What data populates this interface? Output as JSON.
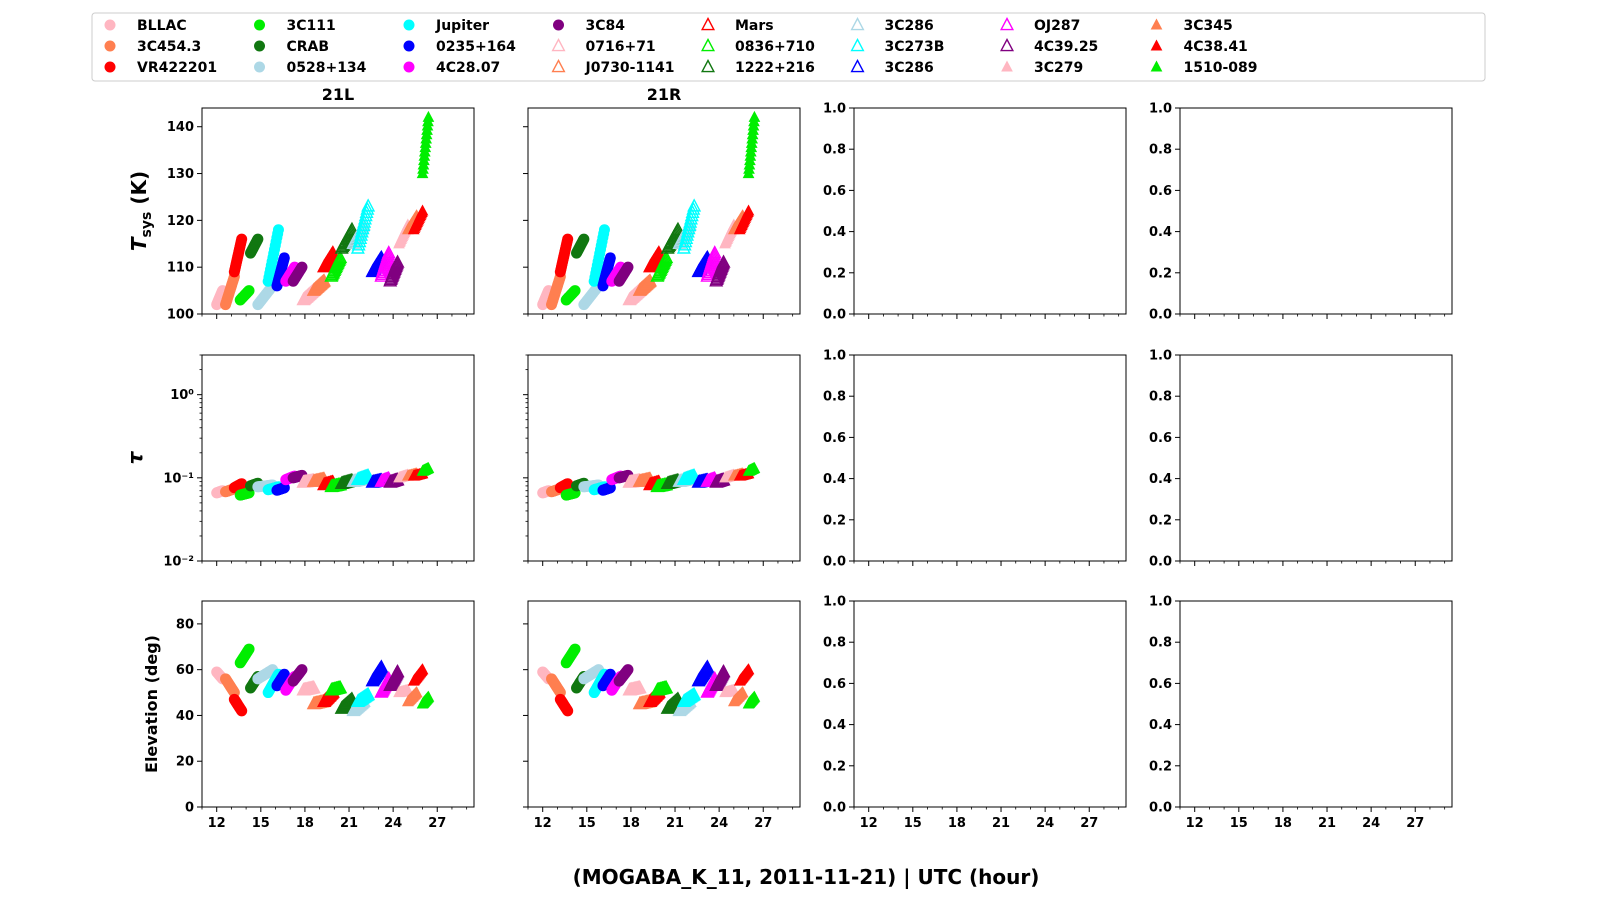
{
  "chart_data": {
    "type": "scatter",
    "xlabel": "(MOGABA_K_11, 2011-11-21) | UTC (hour)",
    "xlim": [
      11,
      29.5
    ],
    "xticks": [
      12,
      15,
      18,
      21,
      24,
      27
    ],
    "columns": [
      {
        "title": "21L",
        "has_data": true
      },
      {
        "title": "21R",
        "has_data": true
      },
      {
        "title": "",
        "has_data": false
      },
      {
        "title": "",
        "has_data": false
      }
    ],
    "rows": [
      {
        "key": "tsys",
        "ylabel": "Tsys (K)",
        "ylabel_main": "T",
        "ylabel_sub": "sys",
        "ylabel_rest": " (K)",
        "scale": "linear",
        "ylim": [
          100,
          144
        ],
        "yticks": [
          100,
          110,
          120,
          130,
          140
        ],
        "ytick_labels": [
          "100",
          "110",
          "120",
          "130",
          "140"
        ]
      },
      {
        "key": "tau",
        "ylabel": "τ",
        "scale": "log",
        "ylim": [
          0.01,
          3
        ],
        "yticks": [
          0.01,
          0.1,
          1
        ],
        "ytick_labels": [
          "10⁻²",
          "10⁻¹",
          "10⁰"
        ]
      },
      {
        "key": "elev",
        "ylabel": "Elevation (deg)",
        "scale": "linear",
        "ylim": [
          0,
          90
        ],
        "yticks": [
          0,
          20,
          40,
          60,
          80
        ],
        "ytick_labels": [
          "0",
          "20",
          "40",
          "60",
          "80"
        ]
      }
    ],
    "empty_axis": {
      "ylim": [
        0,
        1
      ],
      "yticks": [
        0,
        0.2,
        0.4,
        0.6,
        0.8,
        1.0
      ],
      "ytick_labels": [
        "0.0",
        "0.2",
        "0.4",
        "0.6",
        "0.8",
        "1.0"
      ]
    },
    "legend_placement": "top",
    "series": [
      {
        "name": "BLLAC",
        "color": "#ffb6c1",
        "marker": "circle",
        "t0": 12.0,
        "t1": 12.4,
        "tsys": [
          102,
          105
        ],
        "tau": [
          0.066,
          0.07
        ],
        "elev": [
          59,
          56
        ]
      },
      {
        "name": "3C454.3",
        "color": "#ff7f50",
        "marker": "circle",
        "t0": 12.6,
        "t1": 13.2,
        "tsys": [
          102,
          108
        ],
        "tau": [
          0.068,
          0.074
        ],
        "elev": [
          56,
          50
        ]
      },
      {
        "name": "VR422201",
        "color": "#ff0000",
        "marker": "circle",
        "t0": 13.2,
        "t1": 13.7,
        "tsys": [
          109,
          116
        ],
        "tau": [
          0.076,
          0.085
        ],
        "elev": [
          47,
          42
        ]
      },
      {
        "name": "3C111",
        "color": "#00ee00",
        "marker": "circle",
        "t0": 13.6,
        "t1": 14.2,
        "tsys": [
          103,
          105
        ],
        "tau": [
          0.062,
          0.066
        ],
        "elev": [
          63,
          69
        ]
      },
      {
        "name": "CRAB",
        "color": "#117711",
        "marker": "circle",
        "t0": 14.3,
        "t1": 14.8,
        "tsys": [
          113,
          116
        ],
        "tau": [
          0.08,
          0.086
        ],
        "elev": [
          52,
          57
        ]
      },
      {
        "name": "0528+134",
        "color": "#add8e6",
        "marker": "circle",
        "t0": 14.8,
        "t1": 15.8,
        "tsys": [
          102,
          106
        ],
        "tau": [
          0.078,
          0.082
        ],
        "elev": [
          56,
          60
        ]
      },
      {
        "name": "Jupiter",
        "color": "#00ffff",
        "marker": "circle",
        "t0": 15.5,
        "t1": 16.2,
        "tsys": [
          107,
          118
        ],
        "tau": [
          0.072,
          0.078
        ],
        "elev": [
          50,
          58
        ]
      },
      {
        "name": "0235+164",
        "color": "#0000ff",
        "marker": "circle",
        "t0": 16.1,
        "t1": 16.6,
        "tsys": [
          106,
          112
        ],
        "tau": [
          0.071,
          0.076
        ],
        "elev": [
          53,
          58
        ]
      },
      {
        "name": "4C28.07",
        "color": "#ff00ff",
        "marker": "circle",
        "t0": 16.7,
        "t1": 17.3,
        "tsys": [
          107,
          110
        ],
        "tau": [
          0.095,
          0.105
        ],
        "elev": [
          51,
          57
        ]
      },
      {
        "name": "3C84",
        "color": "#800080",
        "marker": "circle",
        "t0": 17.2,
        "t1": 17.8,
        "tsys": [
          107,
          110
        ],
        "tau": [
          0.1,
          0.107
        ],
        "elev": [
          55,
          60
        ]
      },
      {
        "name": "0716+71",
        "color": "#ffb6c1",
        "marker": "triangle-open",
        "t0": 17.9,
        "t1": 18.6,
        "tsys": [
          103,
          105
        ],
        "tau": [
          0.088,
          0.092
        ],
        "elev": [
          51,
          52
        ]
      },
      {
        "name": "J0730-1141",
        "color": "#ff7f50",
        "marker": "triangle-open",
        "t0": 18.6,
        "t1": 19.3,
        "tsys": [
          105,
          107
        ],
        "tau": [
          0.09,
          0.096
        ],
        "elev": [
          45,
          46
        ]
      },
      {
        "name": "Mars",
        "color": "#ff0000",
        "marker": "triangle-open",
        "t0": 19.3,
        "t1": 19.9,
        "tsys": [
          110,
          113
        ],
        "tau": [
          0.082,
          0.088
        ],
        "elev": [
          46,
          50
        ]
      },
      {
        "name": "0836+710",
        "color": "#00ee00",
        "marker": "triangle-open",
        "t0": 19.8,
        "t1": 20.4,
        "tsys": [
          108,
          112
        ],
        "tau": [
          0.078,
          0.082
        ],
        "elev": [
          51,
          52
        ]
      },
      {
        "name": "1222+216",
        "color": "#117711",
        "marker": "triangle-open",
        "t0": 20.5,
        "t1": 21.2,
        "tsys": [
          114,
          118
        ],
        "tau": [
          0.085,
          0.092
        ],
        "elev": [
          43,
          47
        ]
      },
      {
        "name": "3C286",
        "color": "#add8e6",
        "marker": "triangle-open",
        "t0": 21.3,
        "t1": 22.0,
        "tsys": [
          115,
          119
        ],
        "tau": [
          0.09,
          0.096
        ],
        "elev": [
          42,
          46
        ]
      },
      {
        "name": "3C273B",
        "color": "#00ffff",
        "marker": "triangle-open",
        "t0": 21.6,
        "t1": 22.3,
        "tsys": [
          114,
          123
        ],
        "tau": [
          0.095,
          0.105
        ],
        "elev": [
          46,
          49
        ]
      },
      {
        "name": "3C286",
        "color": "#0000ff",
        "marker": "triangle-open",
        "t0": 22.6,
        "t1": 23.2,
        "tsys": [
          109,
          112
        ],
        "tau": [
          0.088,
          0.093
        ],
        "elev": [
          55,
          61
        ]
      },
      {
        "name": "OJ287",
        "color": "#ff00ff",
        "marker": "triangle-open",
        "t0": 23.2,
        "t1": 23.7,
        "tsys": [
          108,
          113
        ],
        "tau": [
          0.09,
          0.097
        ],
        "elev": [
          50,
          56
        ]
      },
      {
        "name": "4C39.25",
        "color": "#800080",
        "marker": "triangle-open",
        "t0": 23.8,
        "t1": 24.3,
        "tsys": [
          107,
          111
        ],
        "tau": [
          0.088,
          0.094
        ],
        "elev": [
          53,
          59
        ]
      },
      {
        "name": "3C279",
        "color": "#ffb6c1",
        "marker": "triangle-filled",
        "t0": 24.4,
        "t1": 25.0,
        "tsys": [
          115,
          119
        ],
        "tau": [
          0.1,
          0.108
        ],
        "elev": [
          50,
          51
        ]
      },
      {
        "name": "3C345",
        "color": "#ff7f50",
        "marker": "triangle-filled",
        "t0": 25.0,
        "t1": 25.6,
        "tsys": [
          118,
          121
        ],
        "tau": [
          0.105,
          0.112
        ],
        "elev": [
          46,
          50
        ]
      },
      {
        "name": "4C38.41",
        "color": "#ff0000",
        "marker": "triangle-filled",
        "t0": 25.4,
        "t1": 26.0,
        "tsys": [
          118,
          122
        ],
        "tau": [
          0.105,
          0.112
        ],
        "elev": [
          55,
          60
        ]
      },
      {
        "name": "1510-089",
        "color": "#00ee00",
        "marker": "triangle-filled",
        "t0": 26.0,
        "t1": 26.4,
        "tsys": [
          130,
          142
        ],
        "tau": [
          0.12,
          0.13
        ],
        "elev": [
          45,
          48
        ]
      }
    ]
  }
}
